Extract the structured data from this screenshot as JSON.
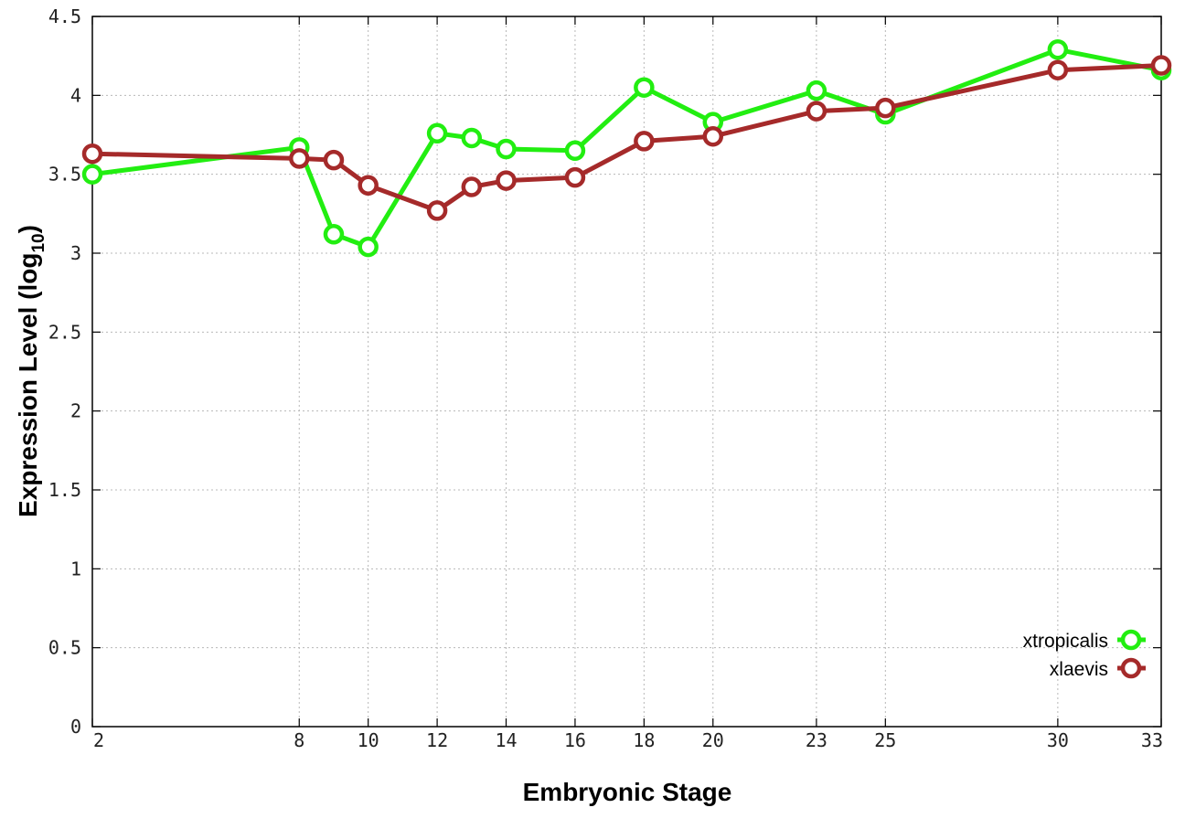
{
  "chart_data": {
    "type": "line",
    "xlabel": "Embryonic Stage",
    "ylabel_main": "Expression Level (log",
    "ylabel_sub": "10",
    "ylabel_close": ")",
    "xlim": [
      2,
      33
    ],
    "ylim": [
      0,
      4.5
    ],
    "x_ticks": [
      2,
      8,
      10,
      12,
      14,
      16,
      18,
      20,
      23,
      25,
      30,
      33
    ],
    "y_ticks": [
      0,
      0.5,
      1,
      1.5,
      2,
      2.5,
      3,
      3.5,
      4,
      4.5
    ],
    "y_tick_labels": [
      "0",
      "0.5",
      "1",
      "1.5",
      "2",
      "2.5",
      "3",
      "3.5",
      "4",
      "4.5"
    ],
    "grid": true,
    "legend_position": "bottom-right",
    "series": [
      {
        "name": "xtropicalis",
        "color": "#22ee11",
        "x": [
          2,
          8,
          9,
          10,
          12,
          13,
          14,
          16,
          18,
          20,
          23,
          25,
          30,
          33
        ],
        "values": [
          3.5,
          3.67,
          3.12,
          3.04,
          3.76,
          3.73,
          3.66,
          3.65,
          4.05,
          3.83,
          4.03,
          3.88,
          4.29,
          4.16
        ]
      },
      {
        "name": "xlaevis",
        "color": "#a52a2a",
        "x": [
          2,
          8,
          9,
          10,
          12,
          13,
          14,
          16,
          18,
          20,
          23,
          25,
          30,
          33
        ],
        "values": [
          3.63,
          3.6,
          3.59,
          3.43,
          3.27,
          3.42,
          3.46,
          3.48,
          3.71,
          3.74,
          3.9,
          3.92,
          4.16,
          4.19
        ]
      }
    ]
  }
}
